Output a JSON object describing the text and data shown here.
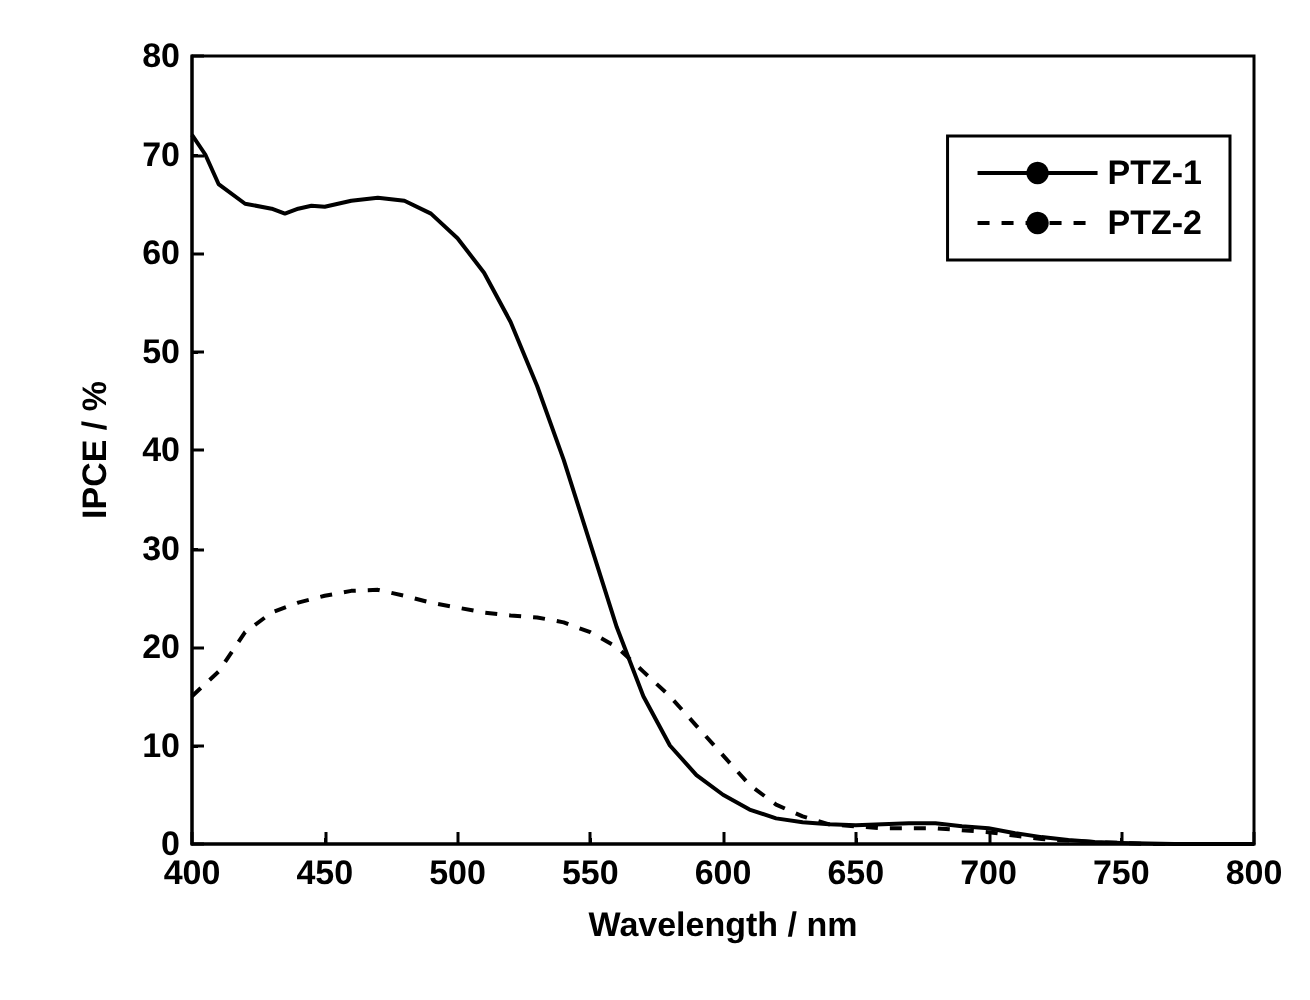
{
  "chart_data": {
    "type": "line",
    "xlabel": "Wavelength / nm",
    "ylabel": "IPCE / %",
    "xlim": [
      400,
      800
    ],
    "xticks": [
      400,
      450,
      500,
      550,
      600,
      650,
      700,
      750,
      800
    ],
    "ylim": [
      0,
      80
    ],
    "yticks": [
      0,
      10,
      20,
      30,
      40,
      50,
      60,
      70,
      80
    ],
    "grid": false,
    "legend": "top right",
    "marker": "none",
    "series": [
      {
        "name": "PTZ-1",
        "color": "#000000",
        "line_style": "solid",
        "x": [
          400,
          405,
          410,
          420,
          430,
          435,
          440,
          445,
          450,
          460,
          470,
          480,
          490,
          500,
          510,
          520,
          530,
          540,
          550,
          560,
          570,
          580,
          590,
          600,
          610,
          620,
          630,
          640,
          650,
          660,
          670,
          680,
          690,
          700,
          710,
          720,
          730,
          740,
          750,
          770,
          800
        ],
        "values": [
          72,
          70,
          67,
          65,
          64.5,
          64,
          64.5,
          64.8,
          64.7,
          65.3,
          65.6,
          65.3,
          64,
          61.5,
          58,
          53,
          46.5,
          39,
          30.5,
          22,
          15,
          10,
          7,
          5,
          3.5,
          2.6,
          2.2,
          2,
          1.9,
          2,
          2.1,
          2.1,
          1.8,
          1.6,
          1.1,
          0.7,
          0.4,
          0.2,
          0.1,
          0,
          0
        ]
      },
      {
        "name": "PTZ-2",
        "color": "#000000",
        "line_style": "dashed",
        "x": [
          400,
          410,
          420,
          430,
          440,
          450,
          460,
          470,
          480,
          490,
          500,
          510,
          520,
          530,
          540,
          550,
          560,
          570,
          580,
          590,
          600,
          610,
          620,
          630,
          640,
          650,
          660,
          680,
          700,
          720,
          740,
          760,
          800
        ],
        "values": [
          15,
          17.5,
          21.5,
          23.5,
          24.5,
          25.2,
          25.7,
          25.8,
          25.2,
          24.5,
          24,
          23.5,
          23.2,
          23,
          22.5,
          21.5,
          20,
          17.5,
          15,
          12,
          9,
          6,
          4,
          2.8,
          2,
          1.8,
          1.6,
          1.6,
          1.2,
          0.5,
          0.2,
          0,
          0
        ]
      }
    ]
  }
}
